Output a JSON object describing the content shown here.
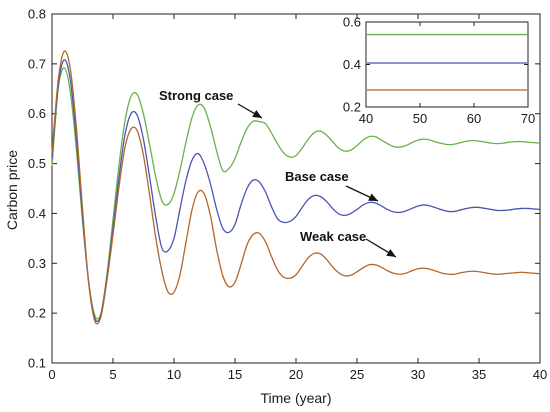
{
  "chart_data": {
    "type": "line",
    "title": "",
    "xlabel": "Time (year)",
    "ylabel": "Carbon price",
    "xlim": [
      0,
      40
    ],
    "ylim": [
      0.1,
      0.8
    ],
    "xticks": [
      "0",
      "5",
      "10",
      "15",
      "20",
      "25",
      "30",
      "35",
      "40"
    ],
    "yticks": [
      "0.1",
      "0.2",
      "0.3",
      "0.4",
      "0.5",
      "0.6",
      "0.7",
      "0.8"
    ],
    "series": [
      {
        "name": "Strong case",
        "color": "#6ab04c",
        "x": [
          0,
          0.5,
          1.0,
          1.5,
          2.0,
          2.5,
          3.0,
          3.5,
          4.0,
          4.5,
          5.0,
          5.5,
          6.0,
          6.5,
          7.0,
          7.5,
          8.0,
          8.5,
          9.0,
          9.5,
          10.0,
          10.5,
          11.0,
          11.5,
          12.0,
          12.5,
          13.0,
          13.5,
          14.0,
          14.5,
          15.0,
          15.5,
          16.0,
          16.5,
          17.0,
          17.5,
          18.0,
          18.5,
          19.0,
          19.5,
          20.0,
          20.5,
          21.0,
          21.5,
          22.0,
          22.5,
          23.0,
          23.5,
          24.0,
          24.5,
          25.0,
          25.5,
          26.0,
          26.5,
          27.0,
          27.5,
          28.0,
          28.5,
          29.0,
          29.5,
          30.0,
          30.5,
          31.0,
          31.5,
          32.0,
          32.5,
          33.0,
          33.5,
          34.0,
          34.5,
          35.0,
          35.5,
          36.0,
          36.5,
          37.0,
          37.5,
          38.0,
          38.5,
          39.0,
          39.5,
          40.0
        ],
        "y": [
          0.495,
          0.648,
          0.692,
          0.644,
          0.528,
          0.385,
          0.265,
          0.196,
          0.199,
          0.277,
          0.387,
          0.499,
          0.588,
          0.636,
          0.638,
          0.599,
          0.538,
          0.474,
          0.426,
          0.418,
          0.44,
          0.488,
          0.545,
          0.594,
          0.618,
          0.61,
          0.573,
          0.525,
          0.486,
          0.49,
          0.51,
          0.543,
          0.571,
          0.585,
          0.584,
          0.58,
          0.561,
          0.539,
          0.521,
          0.513,
          0.516,
          0.531,
          0.549,
          0.562,
          0.565,
          0.557,
          0.544,
          0.531,
          0.525,
          0.527,
          0.536,
          0.547,
          0.554,
          0.554,
          0.547,
          0.54,
          0.534,
          0.533,
          0.536,
          0.542,
          0.547,
          0.549,
          0.547,
          0.543,
          0.54,
          0.538,
          0.539,
          0.542,
          0.545,
          0.546,
          0.545,
          0.543,
          0.541,
          0.54,
          0.541,
          0.543,
          0.544,
          0.544,
          0.543,
          0.542,
          0.541
        ]
      },
      {
        "name": "Base case",
        "color": "#4a56b0",
        "x": [
          0,
          0.5,
          1.0,
          1.5,
          2.0,
          2.5,
          3.0,
          3.5,
          4.0,
          4.5,
          5.0,
          5.5,
          6.0,
          6.5,
          7.0,
          7.5,
          8.0,
          8.5,
          9.0,
          9.5,
          10.0,
          10.5,
          11.0,
          11.5,
          12.0,
          12.5,
          13.0,
          13.5,
          14.0,
          14.5,
          15.0,
          15.5,
          16.0,
          16.5,
          17.0,
          17.5,
          18.0,
          18.5,
          19.0,
          19.5,
          20.0,
          20.5,
          21.0,
          21.5,
          22.0,
          22.5,
          23.0,
          23.5,
          24.0,
          24.5,
          25.0,
          25.5,
          26.0,
          26.5,
          27.0,
          27.5,
          28.0,
          28.5,
          29.0,
          29.5,
          30.0,
          30.5,
          31.0,
          31.5,
          32.0,
          32.5,
          33.0,
          33.5,
          34.0,
          34.5,
          35.0,
          35.5,
          36.0,
          36.5,
          37.0,
          37.5,
          38.0,
          38.5,
          39.0,
          39.5,
          40.0
        ],
        "y": [
          0.51,
          0.655,
          0.708,
          0.668,
          0.549,
          0.395,
          0.262,
          0.19,
          0.196,
          0.271,
          0.37,
          0.474,
          0.56,
          0.601,
          0.596,
          0.548,
          0.473,
          0.393,
          0.331,
          0.325,
          0.35,
          0.41,
          0.468,
          0.508,
          0.52,
          0.498,
          0.458,
          0.408,
          0.37,
          0.362,
          0.378,
          0.418,
          0.451,
          0.467,
          0.463,
          0.443,
          0.413,
          0.389,
          0.382,
          0.384,
          0.394,
          0.412,
          0.428,
          0.436,
          0.434,
          0.424,
          0.41,
          0.399,
          0.396,
          0.4,
          0.408,
          0.417,
          0.422,
          0.421,
          0.415,
          0.408,
          0.403,
          0.402,
          0.405,
          0.41,
          0.415,
          0.417,
          0.415,
          0.411,
          0.407,
          0.404,
          0.404,
          0.407,
          0.41,
          0.412,
          0.412,
          0.41,
          0.408,
          0.406,
          0.406,
          0.407,
          0.409,
          0.41,
          0.41,
          0.409,
          0.408
        ]
      },
      {
        "name": "Weak case",
        "color": "#b5652c",
        "x": [
          0,
          0.5,
          1.0,
          1.5,
          2.0,
          2.5,
          3.0,
          3.5,
          4.0,
          4.5,
          5.0,
          5.5,
          6.0,
          6.5,
          7.0,
          7.5,
          8.0,
          8.5,
          9.0,
          9.5,
          10.0,
          10.5,
          11.0,
          11.5,
          12.0,
          12.5,
          13.0,
          13.5,
          14.0,
          14.5,
          15.0,
          15.5,
          16.0,
          16.5,
          17.0,
          17.5,
          18.0,
          18.5,
          19.0,
          19.5,
          20.0,
          20.5,
          21.0,
          21.5,
          22.0,
          22.5,
          23.0,
          23.5,
          24.0,
          24.5,
          25.0,
          25.5,
          26.0,
          26.5,
          27.0,
          27.5,
          28.0,
          28.5,
          29.0,
          29.5,
          30.0,
          30.5,
          31.0,
          31.5,
          32.0,
          32.5,
          33.0,
          33.5,
          34.0,
          34.5,
          35.0,
          35.5,
          36.0,
          36.5,
          37.0,
          37.5,
          38.0,
          38.5,
          39.0,
          39.5,
          40.0
        ],
        "y": [
          0.52,
          0.665,
          0.725,
          0.69,
          0.572,
          0.41,
          0.262,
          0.185,
          0.192,
          0.265,
          0.357,
          0.455,
          0.535,
          0.57,
          0.565,
          0.516,
          0.437,
          0.352,
          0.285,
          0.243,
          0.242,
          0.278,
          0.345,
          0.41,
          0.444,
          0.438,
          0.394,
          0.327,
          0.275,
          0.253,
          0.262,
          0.298,
          0.338,
          0.358,
          0.36,
          0.343,
          0.313,
          0.286,
          0.272,
          0.27,
          0.277,
          0.294,
          0.311,
          0.32,
          0.319,
          0.308,
          0.293,
          0.281,
          0.275,
          0.276,
          0.283,
          0.291,
          0.297,
          0.297,
          0.292,
          0.285,
          0.28,
          0.278,
          0.28,
          0.285,
          0.289,
          0.29,
          0.288,
          0.284,
          0.28,
          0.278,
          0.278,
          0.281,
          0.283,
          0.284,
          0.283,
          0.281,
          0.279,
          0.278,
          0.279,
          0.28,
          0.281,
          0.282,
          0.281,
          0.28,
          0.279
        ]
      }
    ],
    "annotations": [
      {
        "text": "Strong case",
        "series": "Strong case",
        "arrow_to": {
          "x": 17.8,
          "y": 0.583
        }
      },
      {
        "text": "Base case",
        "series": "Base case",
        "arrow_to": {
          "x": 28.2,
          "y": 0.418
        }
      },
      {
        "text": "Weak case",
        "series": "Weak case",
        "arrow_to": {
          "x": 29.0,
          "y": 0.298
        }
      }
    ],
    "inset": {
      "xlim": [
        40,
        70
      ],
      "ylim": [
        0.2,
        0.6
      ],
      "xticks": [
        "40",
        "50",
        "60",
        "70"
      ],
      "yticks": [
        "0.2",
        "0.4",
        "0.6"
      ],
      "series": [
        {
          "name": "Strong case",
          "color": "#6ab04c",
          "values": [
            0.541,
            0.541
          ]
        },
        {
          "name": "Base case",
          "color": "#4a56b0",
          "values": [
            0.407,
            0.407
          ]
        },
        {
          "name": "Weak case",
          "color": "#b5652c",
          "values": [
            0.28,
            0.28
          ]
        }
      ]
    },
    "grid": false,
    "legend": "none"
  }
}
